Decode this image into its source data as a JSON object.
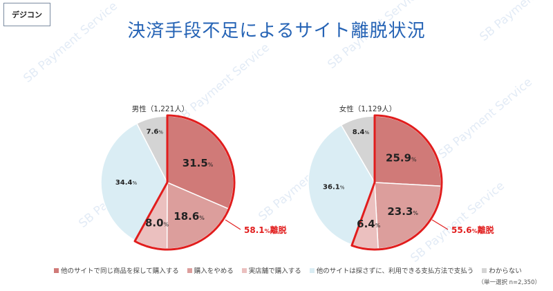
{
  "brand": "デジコン",
  "title": "決済手段不足によるサイト離脱状況",
  "watermark": "SB Payment Service",
  "colors": {
    "title": "#2563b5",
    "highlight": "#e11d1d",
    "slices": [
      "#d07a78",
      "#dc9e9c",
      "#ebc0bf",
      "#daedf4",
      "#d4d4d4"
    ]
  },
  "legend": [
    "他のサイトで同じ商品を探して購入する",
    "購入をやめる",
    "実店舗で購入する",
    "他のサイトは探さずに、利用できる支払方法で支払う",
    "わからない"
  ],
  "note": "（単一選択 n=2,350）",
  "unit_small": "%",
  "chart_data": [
    {
      "type": "pie",
      "title": "男性（1,221人）",
      "categories": [
        "他のサイトで同じ商品を探して購入する",
        "購入をやめる",
        "実店舗で購入する",
        "他のサイトは探さずに、利用できる支払方法で支払う",
        "わからない"
      ],
      "values": [
        31.5,
        18.6,
        8.0,
        34.4,
        7.6
      ],
      "labels": [
        "31.5",
        "18.6",
        "8.0",
        "34.4",
        "7.6"
      ],
      "highlight_total": "58.1",
      "highlight_suffix": "離脱"
    },
    {
      "type": "pie",
      "title": "女性（1,129人）",
      "categories": [
        "他のサイトで同じ商品を探して購入する",
        "購入をやめる",
        "実店舗で購入する",
        "他のサイトは探さずに、利用できる支払方法で支払う",
        "わからない"
      ],
      "values": [
        25.9,
        23.3,
        6.4,
        36.1,
        8.4
      ],
      "labels": [
        "25.9",
        "23.3",
        "6.4",
        "36.1",
        "8.4"
      ],
      "highlight_total": "55.6",
      "highlight_suffix": "離脱"
    }
  ]
}
